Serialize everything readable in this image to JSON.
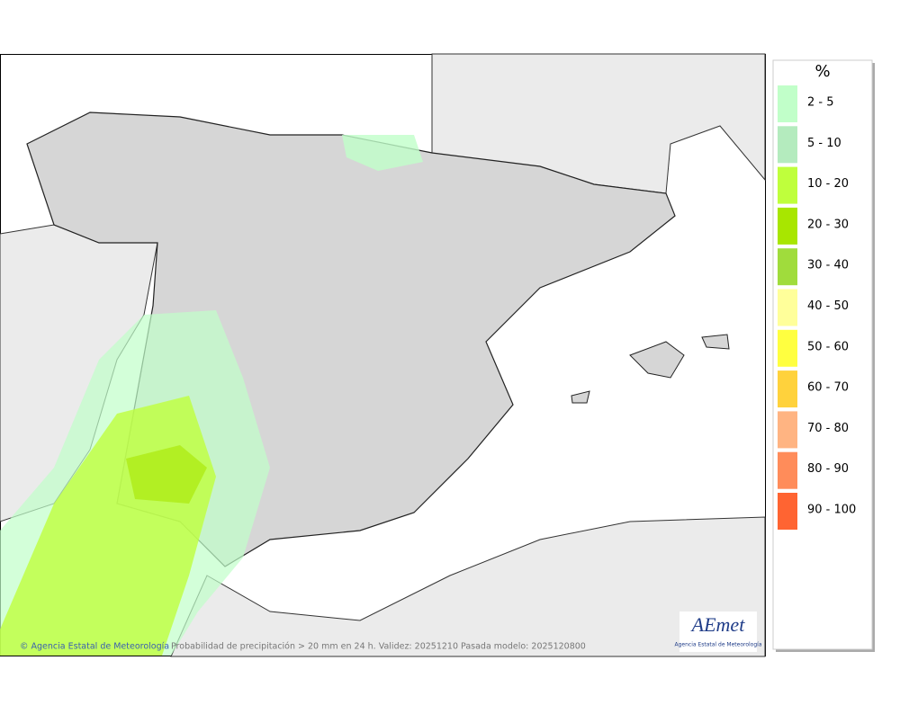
{
  "legend": {
    "title": "%",
    "items": [
      {
        "label": "2 - 5",
        "color": "#c1ffc9"
      },
      {
        "label": "5 - 10",
        "color": "#b4ebbe"
      },
      {
        "label": "10 - 20",
        "color": "#bfff3c"
      },
      {
        "label": "20 - 30",
        "color": "#a8e600"
      },
      {
        "label": "30 - 40",
        "color": "#a0dc3c"
      },
      {
        "label": "40 - 50",
        "color": "#ffff9a"
      },
      {
        "label": "50 - 60",
        "color": "#ffff40"
      },
      {
        "label": "60 - 70",
        "color": "#ffd23c"
      },
      {
        "label": "70 - 80",
        "color": "#ffb482"
      },
      {
        "label": "80 - 90",
        "color": "#ff8c5a"
      },
      {
        "label": "90 - 100",
        "color": "#ff6432"
      }
    ]
  },
  "footer": {
    "credit": "© Agencia Estatal de Meteorología",
    "caption": "Probabilidad de precipitación > 20 mm en 24 h. Validez: 20251210 Pasada modelo: 2025120800"
  },
  "logo": {
    "text": "AEmet",
    "subtitle": "Agencia Estatal de Meteorología"
  }
}
